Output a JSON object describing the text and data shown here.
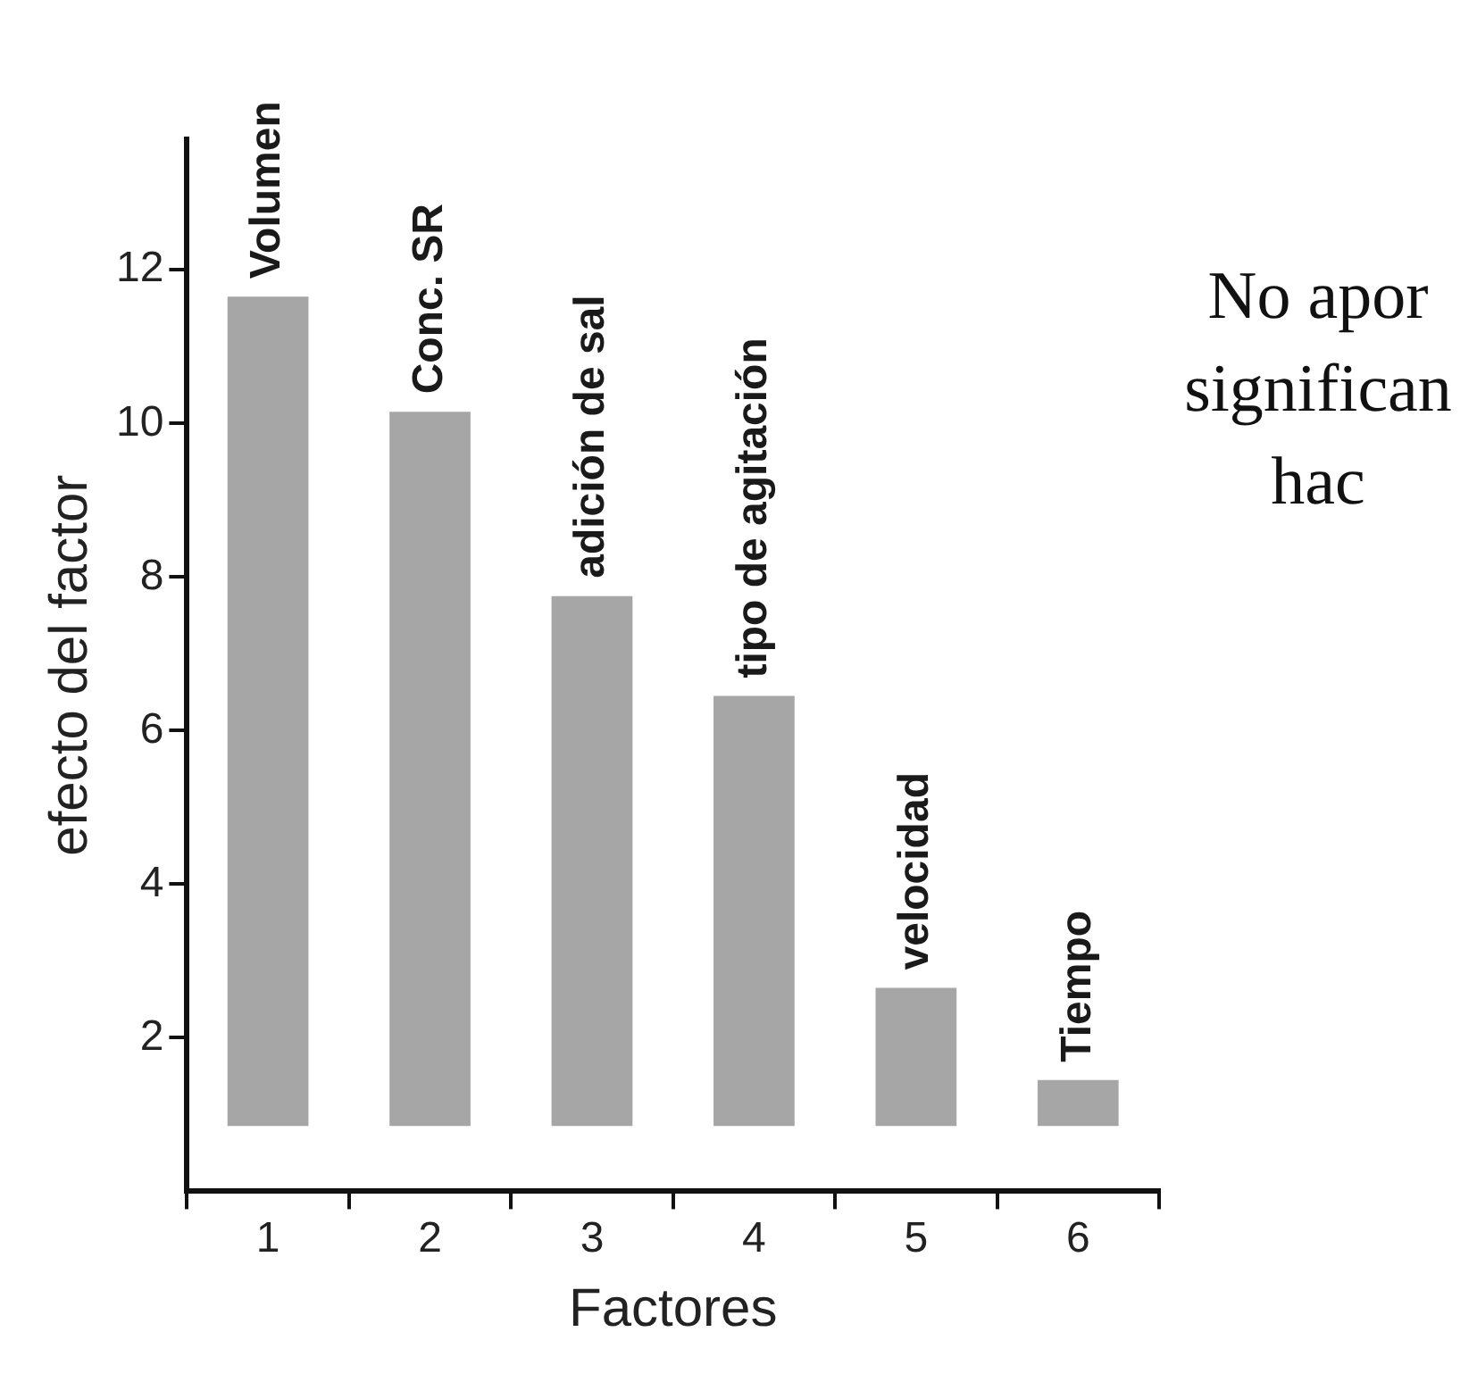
{
  "chart_data": {
    "type": "bar",
    "xlabel": "Factores",
    "ylabel": "efecto del factor",
    "categories": [
      "1",
      "2",
      "3",
      "4",
      "5",
      "6"
    ],
    "values": [
      10.8,
      9.3,
      6.9,
      5.6,
      1.8,
      0.6
    ],
    "base": [
      0.85,
      0.85,
      0.85,
      0.85,
      0.85,
      0.85
    ],
    "color": "#a6a6a6",
    "ylim": [
      0,
      13.7
    ],
    "yticks": [
      2,
      4,
      6,
      8,
      10,
      12
    ],
    "grid": false,
    "legend": false,
    "annotations": [
      {
        "text": "Volumen",
        "x": "1",
        "y": 11.65
      },
      {
        "text": "Conc. SR",
        "x": "2",
        "y": 10.15
      },
      {
        "text": "adición de sal",
        "x": "3",
        "y": 7.75
      },
      {
        "text": "tipo de agitación",
        "x": "4",
        "y": 6.45
      },
      {
        "text": "velocidad",
        "x": "5",
        "y": 2.65
      },
      {
        "text": "Tiempo",
        "x": "6",
        "y": 1.45
      },
      "No apor",
      "significan",
      "hac"
    ]
  }
}
